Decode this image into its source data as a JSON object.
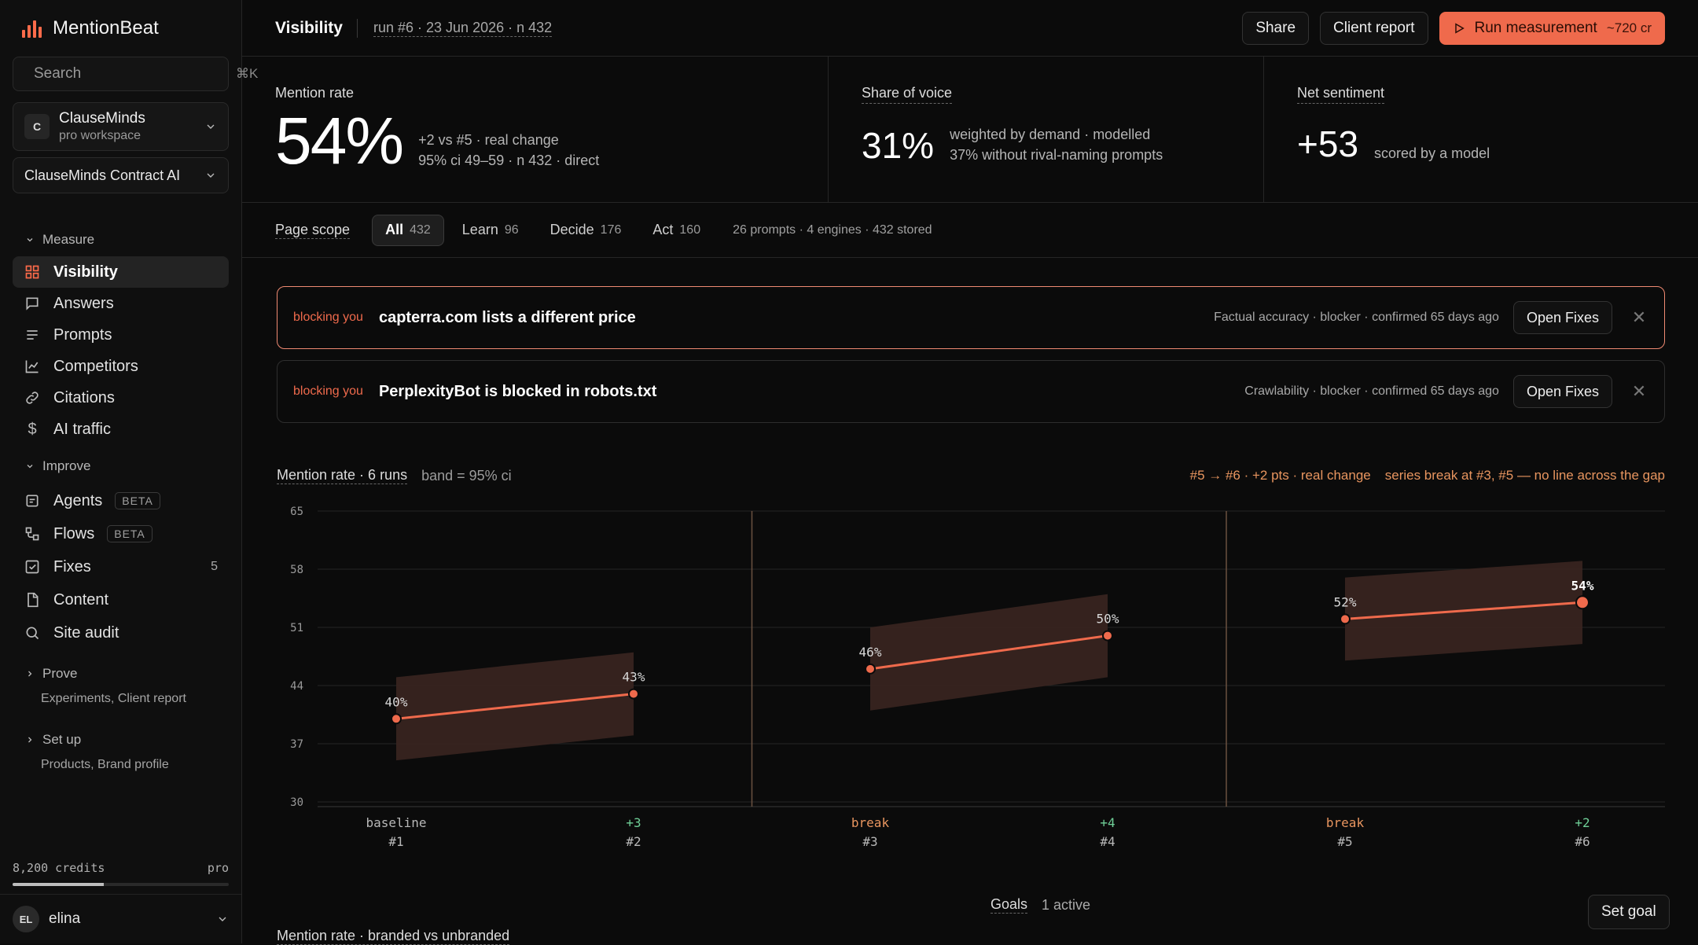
{
  "app": {
    "name": "MentionBeat"
  },
  "search": {
    "placeholder": "Search",
    "shortcut": "⌘K"
  },
  "workspace": {
    "avatar": "C",
    "name": "ClauseMinds",
    "plan": "pro workspace"
  },
  "product": {
    "name": "ClauseMinds Contract AI"
  },
  "nav": {
    "measure": {
      "label": "Measure",
      "items": [
        {
          "label": "Visibility",
          "icon": "grid-icon",
          "active": true
        },
        {
          "label": "Answers",
          "icon": "message-icon"
        },
        {
          "label": "Prompts",
          "icon": "list-icon"
        },
        {
          "label": "Competitors",
          "icon": "chart-line-icon"
        },
        {
          "label": "Citations",
          "icon": "link-icon"
        },
        {
          "label": "AI traffic",
          "icon": "dollar-icon"
        }
      ]
    },
    "improve": {
      "label": "Improve",
      "items": [
        {
          "label": "Agents",
          "badge": "BETA",
          "icon": "agent-icon"
        },
        {
          "label": "Flows",
          "badge": "BETA",
          "icon": "flow-icon"
        },
        {
          "label": "Fixes",
          "count": "5",
          "icon": "check-square-icon"
        },
        {
          "label": "Content",
          "icon": "document-icon"
        },
        {
          "label": "Site audit",
          "icon": "search-icon"
        }
      ]
    },
    "prove": {
      "label": "Prove",
      "sub": "Experiments, Client report"
    },
    "setup": {
      "label": "Set up",
      "sub": "Products, Brand profile"
    }
  },
  "credits": {
    "label": "8,200 credits",
    "plan": "pro",
    "fraction": 0.42
  },
  "user": {
    "initials": "EL",
    "name": "elina"
  },
  "topbar": {
    "title": "Visibility",
    "run_info": "run #6 · 23 Jun 2026 · n 432",
    "share": "Share",
    "client_report": "Client report",
    "run_label": "Run measurement",
    "run_cost": "~720 cr"
  },
  "metrics": {
    "mention": {
      "label": "Mention rate",
      "value": "54%",
      "line1": "+2 vs #5 · real change",
      "line2": "95% ci 49–59 · n 432 · direct"
    },
    "sov": {
      "label": "Share of voice",
      "value": "31%",
      "line1": "weighted by demand · modelled",
      "line2": "37% without rival-naming prompts"
    },
    "sentiment": {
      "label": "Net sentiment",
      "value": "+53",
      "line1": "scored by a model"
    }
  },
  "scope": {
    "label": "Page scope",
    "segments": [
      {
        "label": "All",
        "n": "432",
        "active": true
      },
      {
        "label": "Learn",
        "n": "96"
      },
      {
        "label": "Decide",
        "n": "176"
      },
      {
        "label": "Act",
        "n": "160"
      }
    ],
    "meta": "26 prompts · 4 engines · 432 stored"
  },
  "blockers": [
    {
      "tag": "blocking you",
      "title": "capterra.com lists a different price",
      "meta": "Factual accuracy · blocker · confirmed 65 days ago",
      "action": "Open Fixes"
    },
    {
      "tag": "blocking you",
      "title": "PerplexityBot is blocked in robots.txt",
      "meta": "Crawlability · blocker · confirmed 65 days ago",
      "action": "Open Fixes"
    }
  ],
  "chart_head": {
    "title": "Mention rate · 6 runs",
    "sub": "band = 95% ci",
    "note1": "#5 → #6 · +2 pts · real change",
    "note2": "series break at #3, #5 — no line across the gap"
  },
  "chart_data": {
    "type": "line",
    "title": "Mention rate · 6 runs",
    "yticks": [
      65,
      58,
      51,
      44,
      37,
      30
    ],
    "ylim": [
      30,
      65
    ],
    "runs": [
      "#1",
      "#2",
      "#3",
      "#4",
      "#5",
      "#6"
    ],
    "annotations": [
      "baseline",
      "+3",
      "break",
      "+4",
      "break",
      "+2"
    ],
    "values": [
      40,
      43,
      46,
      50,
      52,
      54
    ],
    "labels": [
      "40%",
      "43%",
      "46%",
      "50%",
      "52%",
      "54%"
    ],
    "ci_low": [
      35,
      38,
      41,
      45,
      47,
      49
    ],
    "ci_high": [
      45,
      48,
      51,
      55,
      57,
      59
    ],
    "segments": [
      [
        0,
        1
      ],
      [
        2,
        3
      ],
      [
        4,
        5
      ]
    ],
    "breaks_before": [
      2,
      4
    ],
    "colors": {
      "line": "#ef6a4c",
      "band": "#3a2520",
      "grid": "#262626",
      "break": "#e8955f",
      "up": "#6fcf97"
    }
  },
  "goals": {
    "label": "Goals",
    "active": "1 active",
    "set_goal": "Set goal"
  },
  "next_section": {
    "title": "Mention rate · branded vs unbranded"
  }
}
